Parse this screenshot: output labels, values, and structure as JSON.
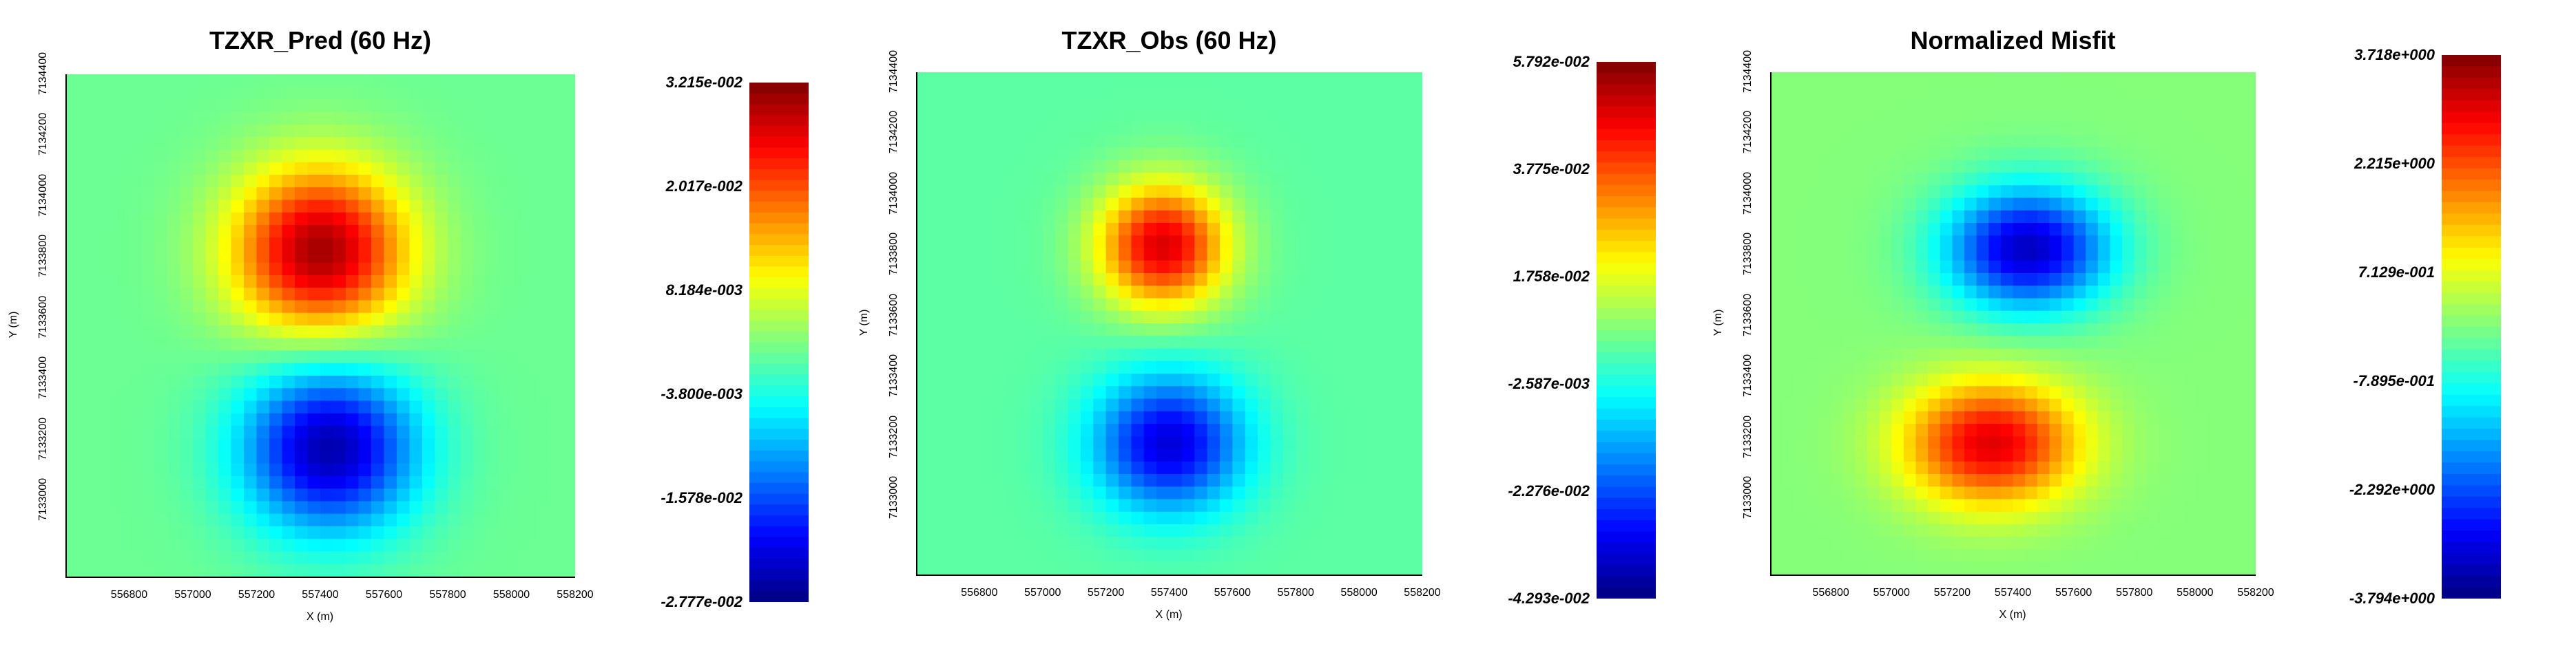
{
  "chart_data": [
    {
      "type": "heatmap",
      "title": "TZXR_Pred (60 Hz)",
      "xlabel": "X (m)",
      "ylabel": "Y (m)",
      "xlim": [
        556600,
        558200
      ],
      "ylim": [
        7132750,
        7134400
      ],
      "x_ticks": [
        "556800",
        "557000",
        "557200",
        "557400",
        "557600",
        "557800",
        "558000",
        "558200"
      ],
      "y_ticks": [
        "7133000",
        "7133200",
        "7133400",
        "7133600",
        "7133800",
        "7134000",
        "7134200",
        "7134400"
      ],
      "colorbar": {
        "min": -0.02777,
        "max": 0.03215,
        "tick_labels": [
          "3.215e-002",
          "2.017e-002",
          "8.184e-003",
          "-3.800e-003",
          "-1.578e-002",
          "-2.777e-002"
        ]
      },
      "background_value": 0.001,
      "anomalies": [
        {
          "x": 557400,
          "y": 7133820,
          "value": 0.029,
          "radius_x": 230,
          "radius_y": 230
        },
        {
          "x": 557430,
          "y": 7133170,
          "value": -0.026,
          "radius_x": 230,
          "radius_y": 230
        }
      ]
    },
    {
      "type": "heatmap",
      "title": "TZXR_Obs (60 Hz)",
      "xlabel": "X (m)",
      "ylabel": "Y (m)",
      "xlim": [
        556600,
        558200
      ],
      "ylim": [
        7132750,
        7134400
      ],
      "x_ticks": [
        "556800",
        "557000",
        "557200",
        "557400",
        "557600",
        "557800",
        "558000",
        "558200"
      ],
      "y_ticks": [
        "7133000",
        "7133200",
        "7133400",
        "7133600",
        "7133800",
        "7134000",
        "7134200",
        "7134400"
      ],
      "colorbar": {
        "min": -0.04293,
        "max": 0.05792,
        "tick_labels": [
          "5.792e-002",
          "3.775e-002",
          "1.758e-002",
          "-2.587e-003",
          "-2.276e-002",
          "-4.293e-002"
        ]
      },
      "background_value": 0.004,
      "anomalies": [
        {
          "x": 557380,
          "y": 7133830,
          "value": 0.045,
          "radius_x": 170,
          "radius_y": 170
        },
        {
          "x": 557400,
          "y": 7133180,
          "value": -0.038,
          "radius_x": 200,
          "radius_y": 190
        }
      ]
    },
    {
      "type": "heatmap",
      "title": "Normalized Misfit",
      "xlabel": "X (m)",
      "ylabel": "Y (m)",
      "xlim": [
        556600,
        558200
      ],
      "ylim": [
        7132750,
        7134400
      ],
      "x_ticks": [
        "556800",
        "557000",
        "557200",
        "557400",
        "557600",
        "557800",
        "558000",
        "558200"
      ],
      "y_ticks": [
        "7133000",
        "7133200",
        "7133400",
        "7133600",
        "7133800",
        "7134000",
        "7134200",
        "7134400"
      ],
      "colorbar": {
        "min": -3.794,
        "max": 3.718,
        "tick_labels": [
          "3.718e+000",
          "2.215e+000",
          "7.129e-001",
          "-7.895e-001",
          "-2.292e+000",
          "-3.794e+000"
        ]
      },
      "background_value": 0.0,
      "anomalies": [
        {
          "x": 557450,
          "y": 7133820,
          "value": -3.3,
          "radius_x": 230,
          "radius_y": 170
        },
        {
          "x": 557330,
          "y": 7133180,
          "value": 3.0,
          "radius_x": 240,
          "radius_y": 170
        }
      ]
    }
  ]
}
